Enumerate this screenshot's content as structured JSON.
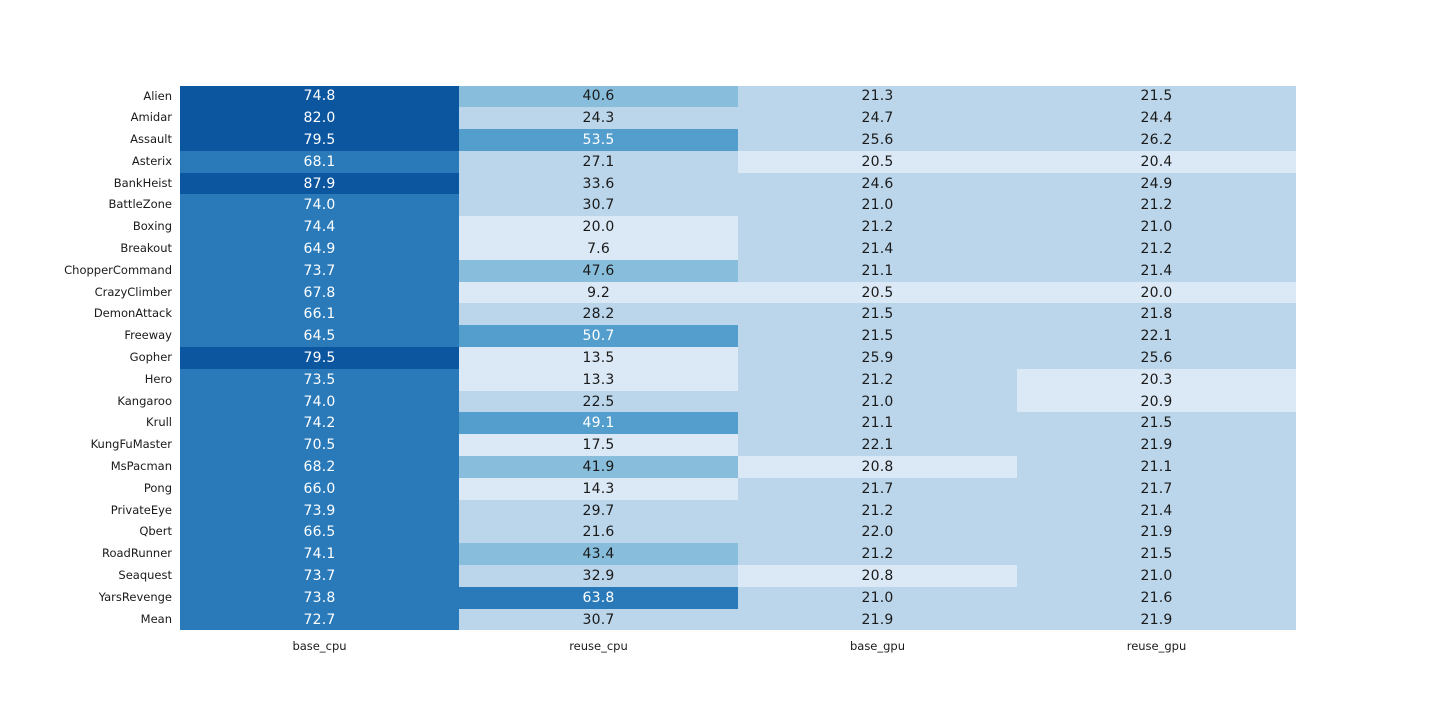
{
  "figure": {
    "background": "#ffffff"
  },
  "chart_data": {
    "type": "heatmap",
    "title": "",
    "columns": [
      "base_cpu",
      "reuse_cpu",
      "base_gpu",
      "reuse_gpu"
    ],
    "rows": [
      "Alien",
      "Amidar",
      "Assault",
      "Asterix",
      "BankHeist",
      "BattleZone",
      "Boxing",
      "Breakout",
      "ChopperCommand",
      "CrazyClimber",
      "DemonAttack",
      "Freeway",
      "Gopher",
      "Hero",
      "Kangaroo",
      "Krull",
      "KungFuMaster",
      "MsPacman",
      "Pong",
      "PrivateEye",
      "Qbert",
      "RoadRunner",
      "Seaquest",
      "YarsRevenge",
      "Mean"
    ],
    "values": [
      [
        74.8,
        40.6,
        21.3,
        21.5
      ],
      [
        82.0,
        24.3,
        24.7,
        24.4
      ],
      [
        79.5,
        53.5,
        25.6,
        26.2
      ],
      [
        68.1,
        27.1,
        20.5,
        20.4
      ],
      [
        87.9,
        33.6,
        24.6,
        24.9
      ],
      [
        74.0,
        30.7,
        21.0,
        21.2
      ],
      [
        74.4,
        20.0,
        21.2,
        21.0
      ],
      [
        64.9,
        7.6,
        21.4,
        21.2
      ],
      [
        73.7,
        47.6,
        21.1,
        21.4
      ],
      [
        67.8,
        9.2,
        20.5,
        20.0
      ],
      [
        66.1,
        28.2,
        21.5,
        21.8
      ],
      [
        64.5,
        50.7,
        21.5,
        22.1
      ],
      [
        79.5,
        13.5,
        25.9,
        25.6
      ],
      [
        73.5,
        13.3,
        21.2,
        20.3
      ],
      [
        74.0,
        22.5,
        21.0,
        20.9
      ],
      [
        74.2,
        49.1,
        21.1,
        21.5
      ],
      [
        70.5,
        17.5,
        22.1,
        21.9
      ],
      [
        68.2,
        41.9,
        20.8,
        21.1
      ],
      [
        66.0,
        14.3,
        21.7,
        21.7
      ],
      [
        73.9,
        29.7,
        21.2,
        21.4
      ],
      [
        66.5,
        21.6,
        22.0,
        21.9
      ],
      [
        74.1,
        43.4,
        21.2,
        21.5
      ],
      [
        73.7,
        32.9,
        20.8,
        21.0
      ],
      [
        73.8,
        63.8,
        21.0,
        21.6
      ],
      [
        72.7,
        30.7,
        21.9,
        21.9
      ]
    ],
    "value_decimals": 1,
    "color_scale": {
      "colormap": "Blues-discrete",
      "vmin": 7.6,
      "vmax": 87.9,
      "bins": 6,
      "palette": [
        "#dbe9f6",
        "#bbd6eb",
        "#88bedc",
        "#549ecd",
        "#2a7aba",
        "#0c56a0"
      ],
      "white_text_from_bin": 3,
      "text_dark": "#1a1a1a",
      "text_light": "#ffffff"
    },
    "legend": "none",
    "grid": false,
    "xlabel": "",
    "ylabel": ""
  }
}
